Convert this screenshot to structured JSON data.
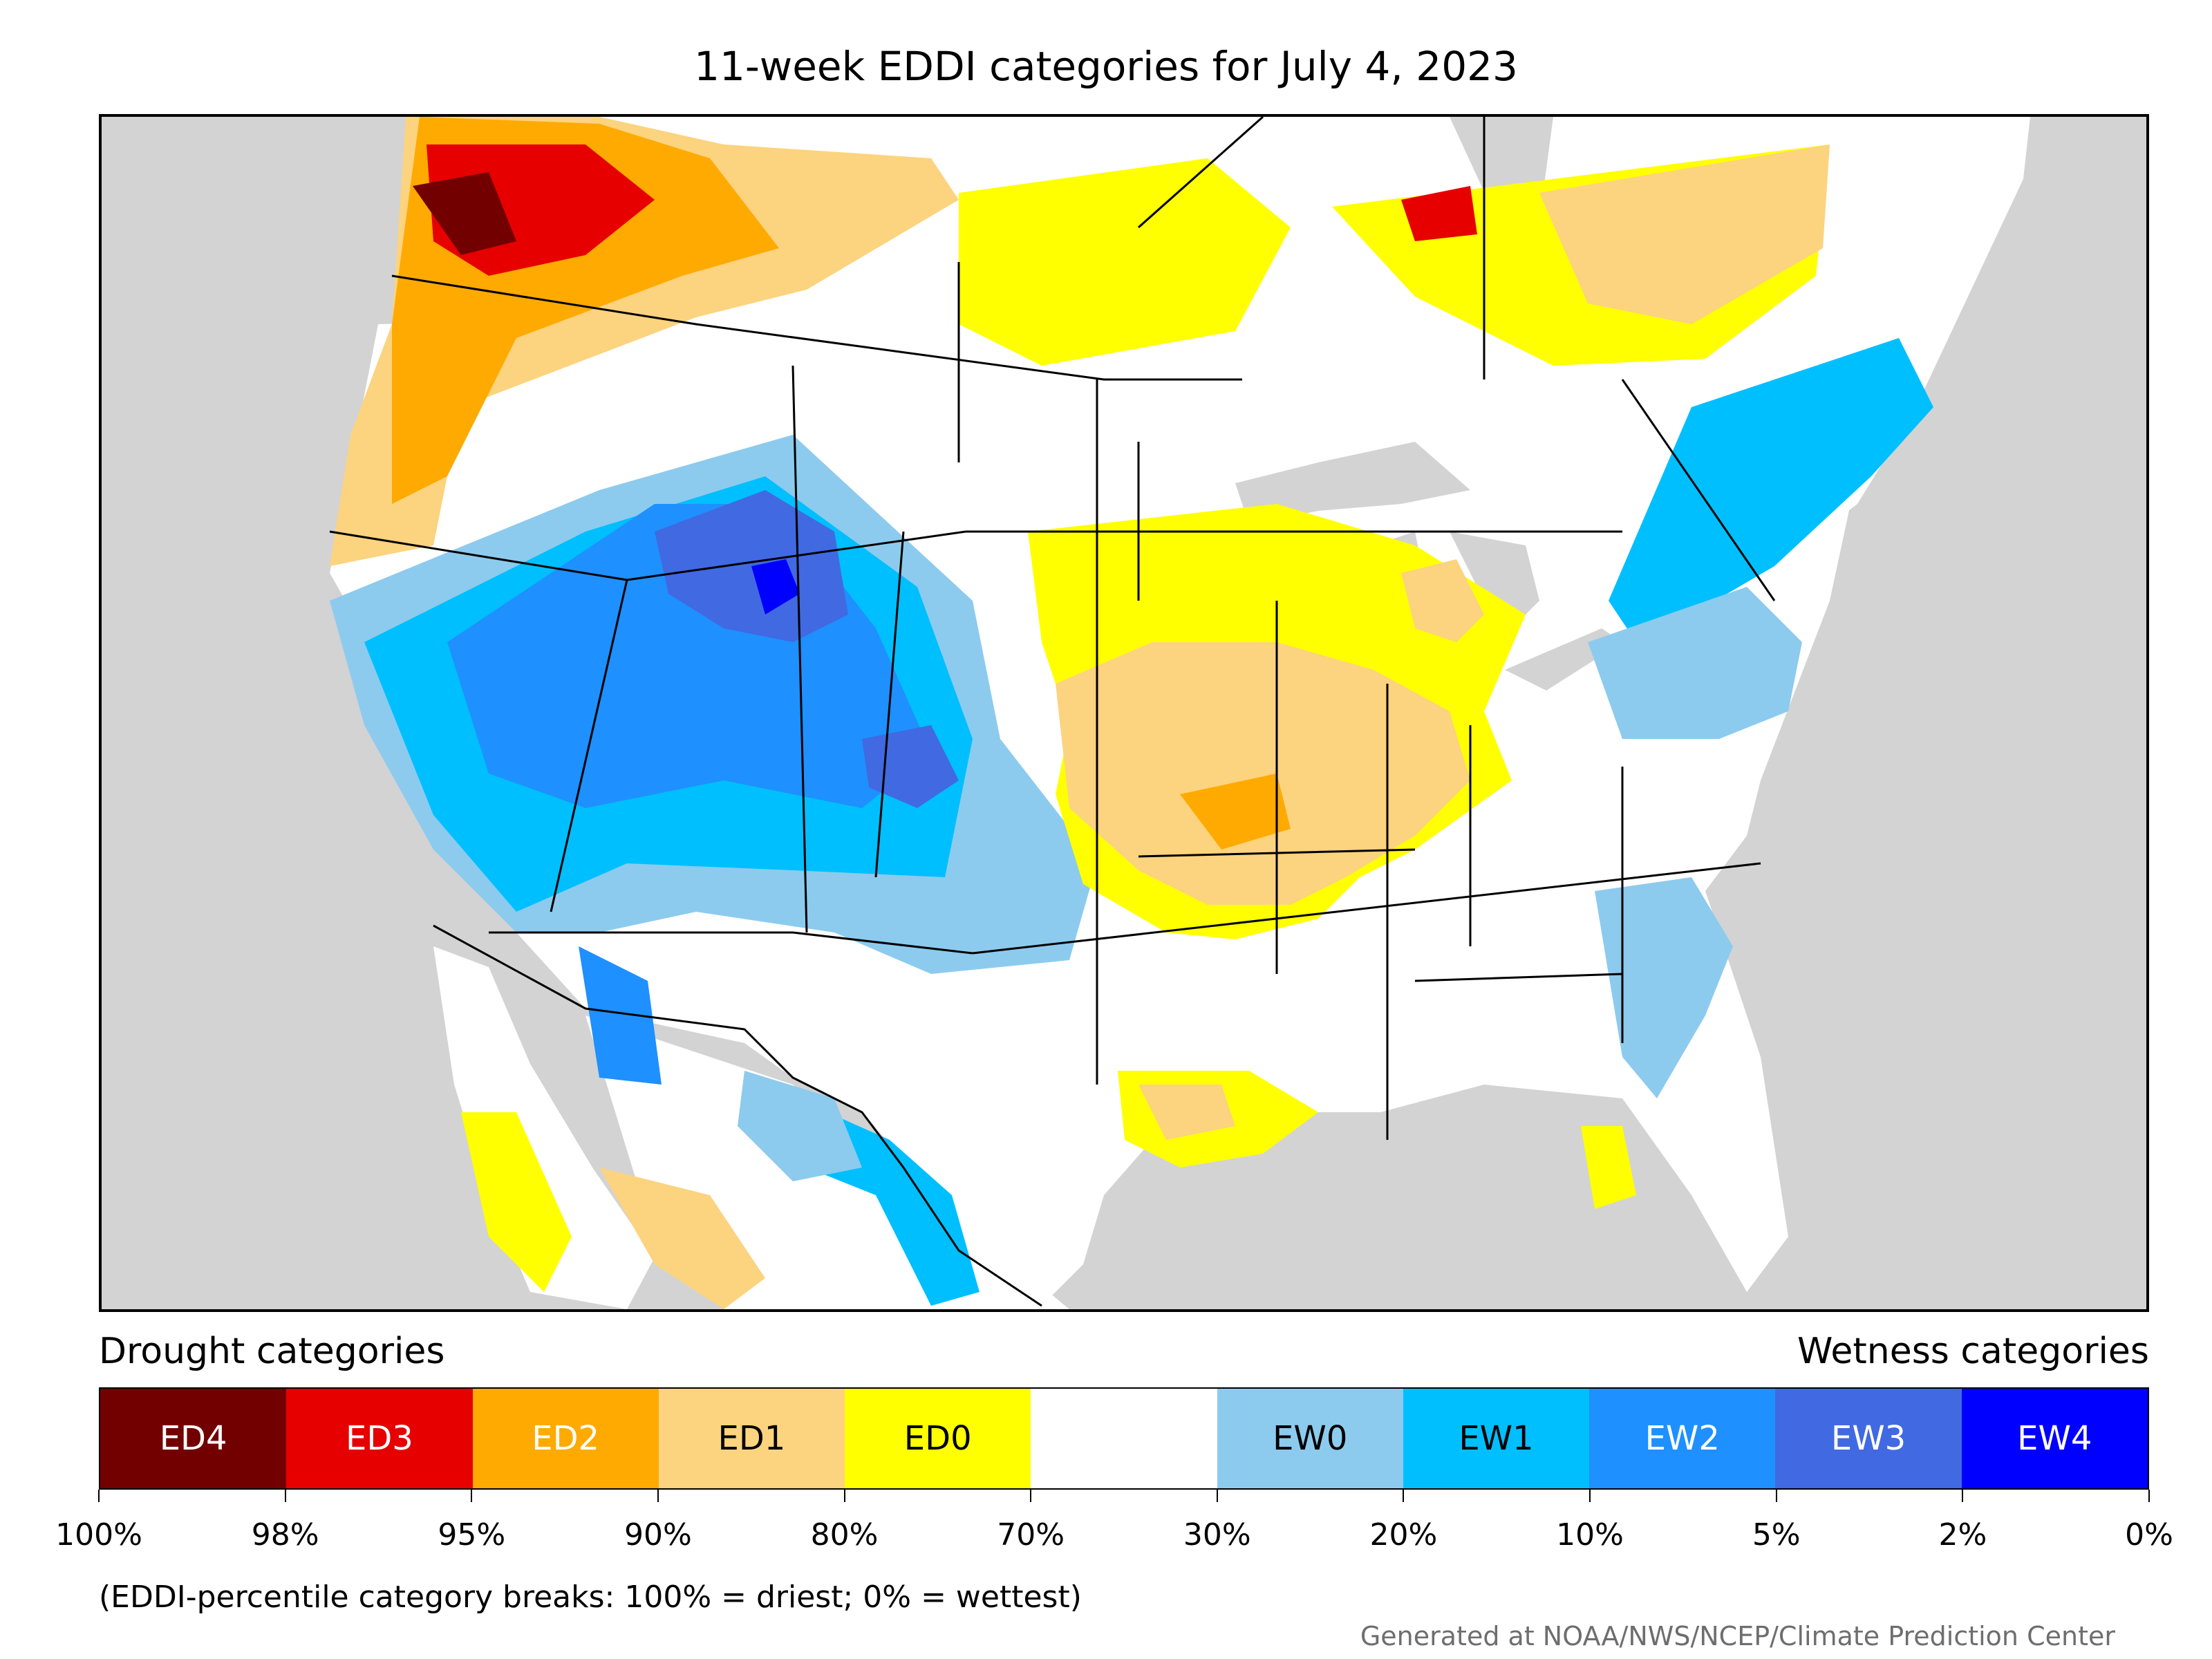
{
  "title": "11-week EDDI categories for July 4, 2023",
  "legend": {
    "drought_label": "Drought categories",
    "wetness_label": "Wetness categories",
    "categories": [
      {
        "name": "ED4",
        "color": "#730000",
        "text_color": "#ffffff"
      },
      {
        "name": "ED3",
        "color": "#e60000",
        "text_color": "#ffffff"
      },
      {
        "name": "ED2",
        "color": "#ffaa00",
        "text_color": "#ffffff"
      },
      {
        "name": "ED1",
        "color": "#fcd37f",
        "text_color": "#000000"
      },
      {
        "name": "ED0",
        "color": "#ffff00",
        "text_color": "#000000"
      },
      {
        "name": "",
        "color": "#ffffff",
        "text_color": "#000000"
      },
      {
        "name": "EW0",
        "color": "#8ccbee",
        "text_color": "#000000"
      },
      {
        "name": "EW1",
        "color": "#00bfff",
        "text_color": "#000000"
      },
      {
        "name": "EW2",
        "color": "#1e90ff",
        "text_color": "#ffffff"
      },
      {
        "name": "EW3",
        "color": "#4169e1",
        "text_color": "#ffffff"
      },
      {
        "name": "EW4",
        "color": "#0000ff",
        "text_color": "#ffffff"
      }
    ],
    "tick_labels": [
      "100%",
      "98%",
      "95%",
      "90%",
      "80%",
      "70%",
      "30%",
      "20%",
      "10%",
      "5%",
      "2%",
      "0%"
    ]
  },
  "note": "(EDDI-percentile category breaks: 100% = driest; 0% = wettest)",
  "credit": "Generated at NOAA/NWS/NCEP/Climate Prediction Center",
  "map": {
    "background_color": "#d3d3d3",
    "land_color": "#ffffff"
  }
}
